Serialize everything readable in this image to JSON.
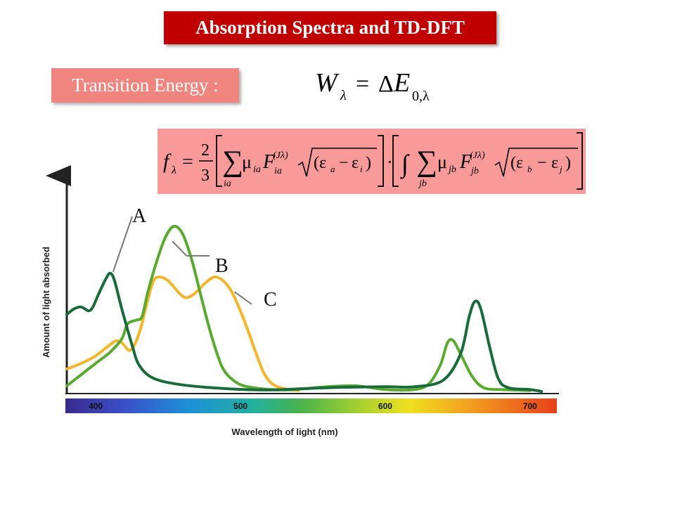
{
  "header": {
    "title": "Absorption Spectra and TD-DFT",
    "label": "Transition Energy :"
  },
  "colors": {
    "title_bg": "#c00000",
    "label_bg": "#f0857f",
    "formula_bg": "#f99a9a",
    "curve_a": "#1a6b3a",
    "curve_b": "#5aaa32",
    "curve_c": "#f2b52b"
  },
  "chart_data": {
    "type": "line",
    "xlabel": "Wavelength of light (nm)",
    "ylabel": "Amount of light absorbed",
    "xlim": [
      380,
      720
    ],
    "ylim": [
      0,
      1
    ],
    "x_ticks": [
      "400",
      "500",
      "600",
      "700"
    ],
    "x_tick_values": [
      400,
      500,
      600,
      700
    ],
    "grid": false,
    "legend": "inline labels",
    "series": [
      {
        "name": "A",
        "color": "#1a6b3a",
        "points": [
          [
            380,
            0.41
          ],
          [
            385,
            0.44
          ],
          [
            390,
            0.45
          ],
          [
            395,
            0.43
          ],
          [
            398,
            0.45
          ],
          [
            402,
            0.52
          ],
          [
            407,
            0.6
          ],
          [
            410,
            0.63
          ],
          [
            413,
            0.59
          ],
          [
            418,
            0.44
          ],
          [
            425,
            0.25
          ],
          [
            430,
            0.14
          ],
          [
            440,
            0.07
          ],
          [
            460,
            0.035
          ],
          [
            490,
            0.015
          ],
          [
            520,
            0.008
          ],
          [
            560,
            0.02
          ],
          [
            600,
            0.025
          ],
          [
            620,
            0.025
          ],
          [
            640,
            0.06
          ],
          [
            652,
            0.2
          ],
          [
            658,
            0.4
          ],
          [
            662,
            0.48
          ],
          [
            666,
            0.44
          ],
          [
            672,
            0.24
          ],
          [
            678,
            0.07
          ],
          [
            685,
            0.02
          ],
          [
            700,
            0.01
          ],
          [
            708,
            0.0
          ]
        ]
      },
      {
        "name": "B",
        "color": "#5aaa32",
        "points": [
          [
            380,
            0.03
          ],
          [
            390,
            0.09
          ],
          [
            400,
            0.15
          ],
          [
            410,
            0.21
          ],
          [
            418,
            0.28
          ],
          [
            422,
            0.36
          ],
          [
            428,
            0.38
          ],
          [
            432,
            0.4
          ],
          [
            436,
            0.53
          ],
          [
            442,
            0.69
          ],
          [
            448,
            0.82
          ],
          [
            454,
            0.88
          ],
          [
            460,
            0.84
          ],
          [
            466,
            0.71
          ],
          [
            472,
            0.53
          ],
          [
            478,
            0.35
          ],
          [
            483,
            0.22
          ],
          [
            488,
            0.12
          ],
          [
            495,
            0.06
          ],
          [
            505,
            0.025
          ],
          [
            530,
            0.008
          ],
          [
            560,
            0.025
          ],
          [
            580,
            0.03
          ],
          [
            600,
            0.01
          ],
          [
            620,
            0.01
          ],
          [
            630,
            0.04
          ],
          [
            638,
            0.14
          ],
          [
            643,
            0.26
          ],
          [
            647,
            0.27
          ],
          [
            652,
            0.2
          ],
          [
            660,
            0.08
          ],
          [
            668,
            0.02
          ],
          [
            680,
            0.01
          ],
          [
            700,
            0.005
          ]
        ]
      },
      {
        "name": "C",
        "color": "#f2b52b",
        "points": [
          [
            380,
            0.12
          ],
          [
            390,
            0.15
          ],
          [
            400,
            0.19
          ],
          [
            410,
            0.25
          ],
          [
            414,
            0.27
          ],
          [
            418,
            0.26
          ],
          [
            424,
            0.22
          ],
          [
            430,
            0.31
          ],
          [
            436,
            0.49
          ],
          [
            440,
            0.59
          ],
          [
            444,
            0.61
          ],
          [
            450,
            0.59
          ],
          [
            457,
            0.53
          ],
          [
            462,
            0.5
          ],
          [
            468,
            0.52
          ],
          [
            476,
            0.58
          ],
          [
            482,
            0.61
          ],
          [
            488,
            0.59
          ],
          [
            494,
            0.53
          ],
          [
            502,
            0.39
          ],
          [
            510,
            0.22
          ],
          [
            516,
            0.1
          ],
          [
            522,
            0.04
          ],
          [
            530,
            0.015
          ],
          [
            540,
            0.005
          ]
        ]
      }
    ]
  }
}
